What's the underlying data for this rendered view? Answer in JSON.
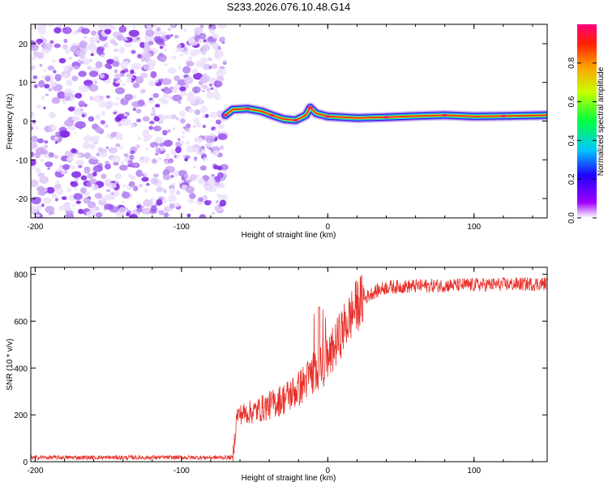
{
  "title": "S233.2026.076.10.48.G14",
  "chart_data": [
    {
      "type": "heatmap",
      "name": "spectrogram",
      "xlabel": "Height of straight line (km)",
      "ylabel": "Frequency (Hz)",
      "xlim": [
        -203,
        150
      ],
      "ylim": [
        -25,
        25
      ],
      "xticks": [
        -200,
        -100,
        0,
        100
      ],
      "yticks": [
        -20,
        -10,
        0,
        10,
        20
      ],
      "colorbar": {
        "label": "Normalized spectral amplitude",
        "range": [
          0,
          1
        ],
        "ticks": [
          0.0,
          0.2,
          0.4,
          0.6,
          0.8
        ]
      },
      "noise_region": {
        "x_range": [
          -203,
          -70
        ],
        "description": "scattered low-amplitude noise"
      },
      "ridge": [
        {
          "x": -70,
          "y": 1.5
        },
        {
          "x": -65,
          "y": 3.0
        },
        {
          "x": -55,
          "y": 3.2
        },
        {
          "x": -45,
          "y": 2.5
        },
        {
          "x": -38,
          "y": 1.5
        },
        {
          "x": -30,
          "y": 0.5
        },
        {
          "x": -22,
          "y": 0.2
        },
        {
          "x": -15,
          "y": 1.5
        },
        {
          "x": -12,
          "y": 3.5
        },
        {
          "x": -8,
          "y": 2.0
        },
        {
          "x": 0,
          "y": 1.2
        },
        {
          "x": 20,
          "y": 0.8
        },
        {
          "x": 40,
          "y": 1.0
        },
        {
          "x": 60,
          "y": 1.3
        },
        {
          "x": 80,
          "y": 1.5
        },
        {
          "x": 100,
          "y": 1.2
        },
        {
          "x": 120,
          "y": 1.3
        },
        {
          "x": 150,
          "y": 1.5
        }
      ]
    },
    {
      "type": "line",
      "name": "snr",
      "xlabel": "Height of straight line (km)",
      "ylabel": "SNR (10 * v/v)",
      "xlim": [
        -203,
        150
      ],
      "ylim": [
        0,
        830
      ],
      "xticks": [
        -200,
        -100,
        0,
        100
      ],
      "yticks": [
        0,
        200,
        400,
        600,
        800
      ],
      "series": [
        {
          "name": "SNR",
          "color": "#e8302a",
          "trend": [
            {
              "x": -203,
              "y": 18
            },
            {
              "x": -65,
              "y": 18
            },
            {
              "x": -62,
              "y": 200
            },
            {
              "x": -50,
              "y": 215
            },
            {
              "x": -40,
              "y": 240
            },
            {
              "x": -30,
              "y": 270
            },
            {
              "x": -20,
              "y": 310
            },
            {
              "x": -10,
              "y": 380
            },
            {
              "x": 0,
              "y": 430
            },
            {
              "x": 10,
              "y": 560
            },
            {
              "x": 20,
              "y": 670
            },
            {
              "x": 30,
              "y": 720
            },
            {
              "x": 40,
              "y": 745
            },
            {
              "x": 60,
              "y": 750
            },
            {
              "x": 100,
              "y": 755
            },
            {
              "x": 150,
              "y": 760
            }
          ],
          "peak": {
            "x": -6,
            "y": 660
          }
        }
      ]
    }
  ]
}
